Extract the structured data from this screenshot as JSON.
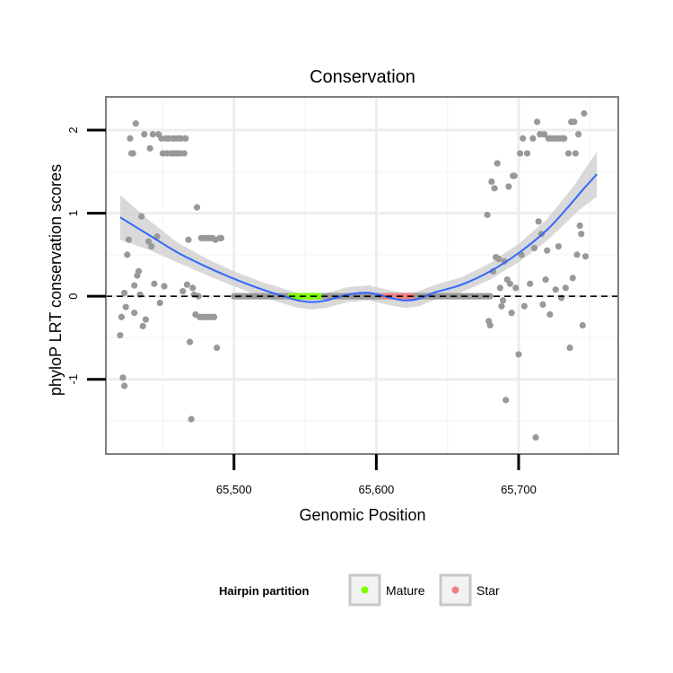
{
  "chart_data": {
    "type": "scatter",
    "title": "Conservation",
    "xlabel": "Genomic Position",
    "ylabel": "phyloP LRT conservation scores",
    "xlim": [
      65410,
      65770
    ],
    "ylim": [
      -1.9,
      2.4
    ],
    "x_ticks": [
      65500,
      65600,
      65700
    ],
    "x_tick_labels": [
      "65,500",
      "65,600",
      "65,700"
    ],
    "y_ticks": [
      -1,
      0,
      1,
      2
    ],
    "y_tick_labels": [
      "-1",
      "0",
      "1",
      "2"
    ],
    "grid": true,
    "reference_line": {
      "y": 0,
      "style": "dashed"
    },
    "legend": {
      "title": "Hairpin partition",
      "position": "bottom",
      "entries": [
        {
          "label": "Mature",
          "color": "#7cfc00"
        },
        {
          "label": "Star",
          "color": "#f08080"
        }
      ]
    },
    "colors": {
      "points": "#999999",
      "smooth": "#3366ff",
      "band": "#cccccc"
    },
    "zero_segment": {
      "x_start": 65500,
      "x_end": 65680,
      "y": 0
    },
    "mature_region": {
      "x_start": 65540,
      "x_end": 65560,
      "y": 0
    },
    "star_region": {
      "x_start": 65605,
      "x_end": 65625,
      "y": 0
    },
    "scatter_points": [
      [
        65420,
        -0.47
      ],
      [
        65421,
        -0.25
      ],
      [
        65422,
        -0.98
      ],
      [
        65423,
        -1.08
      ],
      [
        65423,
        0.04
      ],
      [
        65424,
        -0.13
      ],
      [
        65425,
        0.5
      ],
      [
        65426,
        0.68
      ],
      [
        65427,
        1.9
      ],
      [
        65428,
        1.72
      ],
      [
        65429,
        1.72
      ],
      [
        65430,
        0.13
      ],
      [
        65430,
        -0.2
      ],
      [
        65431,
        2.08
      ],
      [
        65432,
        0.25
      ],
      [
        65433,
        0.3
      ],
      [
        65434,
        0.02
      ],
      [
        65435,
        0.96
      ],
      [
        65436,
        -0.36
      ],
      [
        65437,
        1.95
      ],
      [
        65438,
        -0.28
      ],
      [
        65440,
        0.66
      ],
      [
        65441,
        1.78
      ],
      [
        65442,
        0.6
      ],
      [
        65443,
        1.95
      ],
      [
        65444,
        0.15
      ],
      [
        65446,
        0.72
      ],
      [
        65447,
        1.95
      ],
      [
        65448,
        -0.08
      ],
      [
        65449,
        1.9
      ],
      [
        65450,
        1.72
      ],
      [
        65451,
        0.12
      ],
      [
        65452,
        1.9
      ],
      [
        65453,
        1.72
      ],
      [
        65454,
        1.9
      ],
      [
        65456,
        1.72
      ],
      [
        65457,
        1.9
      ],
      [
        65458,
        1.72
      ],
      [
        65459,
        1.9
      ],
      [
        65460,
        1.72
      ],
      [
        65461,
        1.9
      ],
      [
        65462,
        1.72
      ],
      [
        65463,
        1.9
      ],
      [
        65464,
        0.06
      ],
      [
        65465,
        1.72
      ],
      [
        65466,
        1.9
      ],
      [
        65467,
        0.14
      ],
      [
        65468,
        0.68
      ],
      [
        65469,
        -0.55
      ],
      [
        65470,
        -1.48
      ],
      [
        65471,
        0.1
      ],
      [
        65472,
        0.02
      ],
      [
        65473,
        -0.22
      ],
      [
        65474,
        1.07
      ],
      [
        65475,
        0.0
      ],
      [
        65476,
        -0.25
      ],
      [
        65477,
        0.7
      ],
      [
        65478,
        -0.25
      ],
      [
        65479,
        0.7
      ],
      [
        65480,
        -0.25
      ],
      [
        65481,
        0.7
      ],
      [
        65482,
        -0.25
      ],
      [
        65483,
        0.7
      ],
      [
        65484,
        -0.25
      ],
      [
        65485,
        0.7
      ],
      [
        65486,
        -0.25
      ],
      [
        65487,
        0.68
      ],
      [
        65488,
        -0.62
      ],
      [
        65490,
        0.7
      ],
      [
        65491,
        0.7
      ],
      [
        65678,
        0.98
      ],
      [
        65679,
        -0.3
      ],
      [
        65680,
        -0.35
      ],
      [
        65681,
        1.38
      ],
      [
        65682,
        0.3
      ],
      [
        65683,
        1.3
      ],
      [
        65684,
        0.47
      ],
      [
        65685,
        1.6
      ],
      [
        65686,
        0.45
      ],
      [
        65687,
        0.1
      ],
      [
        65688,
        -0.12
      ],
      [
        65689,
        -0.05
      ],
      [
        65690,
        0.42
      ],
      [
        65691,
        -1.25
      ],
      [
        65692,
        0.2
      ],
      [
        65693,
        1.32
      ],
      [
        65694,
        0.15
      ],
      [
        65695,
        -0.2
      ],
      [
        65696,
        1.45
      ],
      [
        65697,
        1.45
      ],
      [
        65698,
        0.1
      ],
      [
        65700,
        -0.7
      ],
      [
        65701,
        1.72
      ],
      [
        65702,
        0.5
      ],
      [
        65703,
        1.9
      ],
      [
        65704,
        -0.12
      ],
      [
        65706,
        1.72
      ],
      [
        65708,
        0.15
      ],
      [
        65710,
        1.9
      ],
      [
        65711,
        0.58
      ],
      [
        65712,
        -1.7
      ],
      [
        65713,
        2.1
      ],
      [
        65714,
        0.9
      ],
      [
        65715,
        1.95
      ],
      [
        65716,
        0.75
      ],
      [
        65717,
        -0.1
      ],
      [
        65718,
        1.95
      ],
      [
        65719,
        0.2
      ],
      [
        65720,
        0.55
      ],
      [
        65721,
        1.9
      ],
      [
        65722,
        -0.22
      ],
      [
        65723,
        1.9
      ],
      [
        65725,
        1.9
      ],
      [
        65726,
        0.08
      ],
      [
        65727,
        1.9
      ],
      [
        65728,
        0.6
      ],
      [
        65729,
        1.9
      ],
      [
        65730,
        -0.02
      ],
      [
        65731,
        1.9
      ],
      [
        65732,
        1.9
      ],
      [
        65733,
        0.1
      ],
      [
        65735,
        1.72
      ],
      [
        65736,
        -0.62
      ],
      [
        65737,
        2.1
      ],
      [
        65738,
        0.22
      ],
      [
        65739,
        2.1
      ],
      [
        65740,
        1.72
      ],
      [
        65741,
        0.5
      ],
      [
        65742,
        1.95
      ],
      [
        65743,
        0.85
      ],
      [
        65744,
        0.75
      ],
      [
        65745,
        -0.35
      ],
      [
        65746,
        2.2
      ],
      [
        65747,
        0.48
      ]
    ],
    "smooth_curve": [
      [
        65420,
        0.95
      ],
      [
        65440,
        0.74
      ],
      [
        65460,
        0.53
      ],
      [
        65480,
        0.36
      ],
      [
        65500,
        0.21
      ],
      [
        65520,
        0.08
      ],
      [
        65535,
        0.0
      ],
      [
        65545,
        -0.05
      ],
      [
        65555,
        -0.07
      ],
      [
        65565,
        -0.05
      ],
      [
        65580,
        0.02
      ],
      [
        65595,
        0.04
      ],
      [
        65610,
        -0.02
      ],
      [
        65620,
        -0.05
      ],
      [
        65630,
        -0.03
      ],
      [
        65640,
        0.04
      ],
      [
        65660,
        0.14
      ],
      [
        65680,
        0.3
      ],
      [
        65700,
        0.52
      ],
      [
        65720,
        0.8
      ],
      [
        65735,
        1.08
      ],
      [
        65745,
        1.28
      ],
      [
        65755,
        1.47
      ]
    ],
    "band_halfwidth": [
      [
        65420,
        0.27
      ],
      [
        65440,
        0.18
      ],
      [
        65460,
        0.12
      ],
      [
        65480,
        0.1
      ],
      [
        65500,
        0.09
      ],
      [
        65520,
        0.09
      ],
      [
        65540,
        0.09
      ],
      [
        65560,
        0.09
      ],
      [
        65580,
        0.09
      ],
      [
        65600,
        0.09
      ],
      [
        65620,
        0.09
      ],
      [
        65640,
        0.09
      ],
      [
        65660,
        0.09
      ],
      [
        65680,
        0.1
      ],
      [
        65700,
        0.11
      ],
      [
        65720,
        0.13
      ],
      [
        65740,
        0.18
      ],
      [
        65755,
        0.27
      ]
    ]
  }
}
